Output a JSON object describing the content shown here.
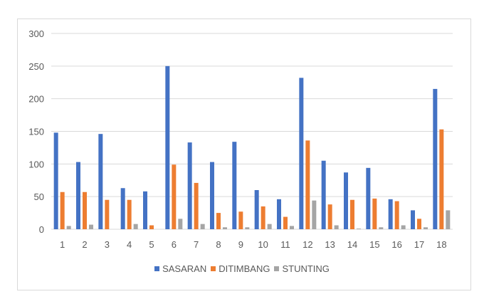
{
  "chart_data": {
    "type": "bar",
    "title": "",
    "xlabel": "",
    "ylabel": "",
    "ylim": [
      0,
      300
    ],
    "yticks": [
      0,
      50,
      100,
      150,
      200,
      250,
      300
    ],
    "grid": true,
    "legend_position": "bottom",
    "categories": [
      "1",
      "2",
      "3",
      "4",
      "5",
      "6",
      "7",
      "8",
      "9",
      "10",
      "11",
      "12",
      "13",
      "14",
      "15",
      "16",
      "17",
      "18"
    ],
    "series": [
      {
        "name": "SASARAN",
        "color": "#4472c4",
        "values": [
          148,
          103,
          146,
          63,
          58,
          250,
          133,
          103,
          134,
          60,
          46,
          232,
          105,
          87,
          94,
          46,
          29,
          215
        ]
      },
      {
        "name": "DITIMBANG",
        "color": "#ed7d31",
        "values": [
          57,
          57,
          45,
          45,
          6,
          99,
          71,
          25,
          27,
          35,
          19,
          136,
          38,
          45,
          47,
          43,
          16,
          153
        ]
      },
      {
        "name": "STUNTING",
        "color": "#a5a5a5",
        "values": [
          5,
          7,
          0,
          8,
          0,
          16,
          8,
          3,
          3,
          8,
          5,
          44,
          6,
          1,
          3,
          6,
          3,
          29
        ]
      }
    ]
  },
  "legend": {
    "items": [
      {
        "label": "SASARAN",
        "color": "#4472c4"
      },
      {
        "label": "DITIMBANG",
        "color": "#ed7d31"
      },
      {
        "label": "STUNTING",
        "color": "#a5a5a5"
      }
    ]
  }
}
